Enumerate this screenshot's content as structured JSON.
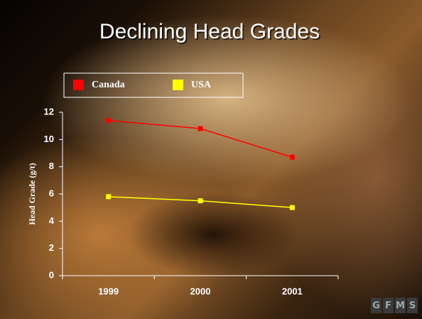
{
  "chart_data": {
    "type": "line",
    "title": "Declining Head Grades",
    "y_label": "Head Grade (g/t)",
    "categories": [
      "1999",
      "2000",
      "2001"
    ],
    "series": [
      {
        "name": "Canada",
        "color": "#ff0000",
        "values": [
          11.4,
          10.8,
          8.7
        ]
      },
      {
        "name": "USA",
        "color": "#ffff00",
        "values": [
          5.8,
          5.5,
          5.0
        ]
      }
    ],
    "ylim": [
      0,
      12
    ],
    "yticks": [
      0,
      2,
      4,
      6,
      8,
      10,
      12
    ]
  },
  "logo": [
    "G",
    "F",
    "M",
    "S"
  ]
}
